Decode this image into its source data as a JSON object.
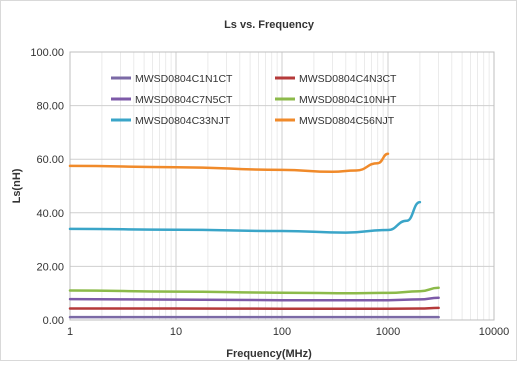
{
  "chart_data": {
    "type": "line",
    "title": "Ls vs. Frequency",
    "xlabel": "Frequency(MHz)",
    "ylabel": "Ls(nH)",
    "x_scale": "log",
    "xlim": [
      1,
      10000
    ],
    "ylim": [
      0,
      100
    ],
    "x_ticks": [
      "1",
      "10",
      "100",
      "1000",
      "10000"
    ],
    "y_ticks": [
      "0.00",
      "20.00",
      "40.00",
      "60.00",
      "80.00",
      "100.00"
    ],
    "grid": true,
    "legend_position": "top",
    "series": [
      {
        "name": "MWSD0804C1N1CT",
        "color": "#7b6aa6",
        "x": [
          1,
          10,
          100,
          1000,
          3000
        ],
        "y": [
          1.1,
          1.1,
          1.1,
          1.1,
          1.1
        ]
      },
      {
        "name": "MWSD0804C4N3CT",
        "color": "#b53a3a",
        "x": [
          1,
          10,
          100,
          1000,
          2000,
          3000
        ],
        "y": [
          4.3,
          4.3,
          4.2,
          4.2,
          4.3,
          4.5
        ]
      },
      {
        "name": "MWSD0804C7N5CT",
        "color": "#7d5aa8",
        "x": [
          1,
          10,
          100,
          1000,
          2000,
          3000
        ],
        "y": [
          7.8,
          7.6,
          7.4,
          7.4,
          7.7,
          8.3
        ]
      },
      {
        "name": "MWSD0804C10NHT",
        "color": "#8cba4a",
        "x": [
          1,
          10,
          100,
          500,
          1000,
          2000,
          3000
        ],
        "y": [
          11.0,
          10.6,
          10.2,
          10.0,
          10.1,
          10.7,
          12.0
        ]
      },
      {
        "name": "MWSD0804C33NJT",
        "color": "#3aa5c8",
        "x": [
          1,
          10,
          100,
          400,
          1000,
          1500,
          2000
        ],
        "y": [
          34.0,
          33.7,
          33.2,
          32.6,
          33.6,
          37.0,
          44.0
        ]
      },
      {
        "name": "MWSD0804C56NJT",
        "color": "#f08a2a",
        "x": [
          1,
          10,
          100,
          300,
          500,
          800,
          1000
        ],
        "y": [
          57.5,
          57.0,
          56.0,
          55.3,
          55.8,
          58.5,
          62.0
        ]
      }
    ]
  }
}
